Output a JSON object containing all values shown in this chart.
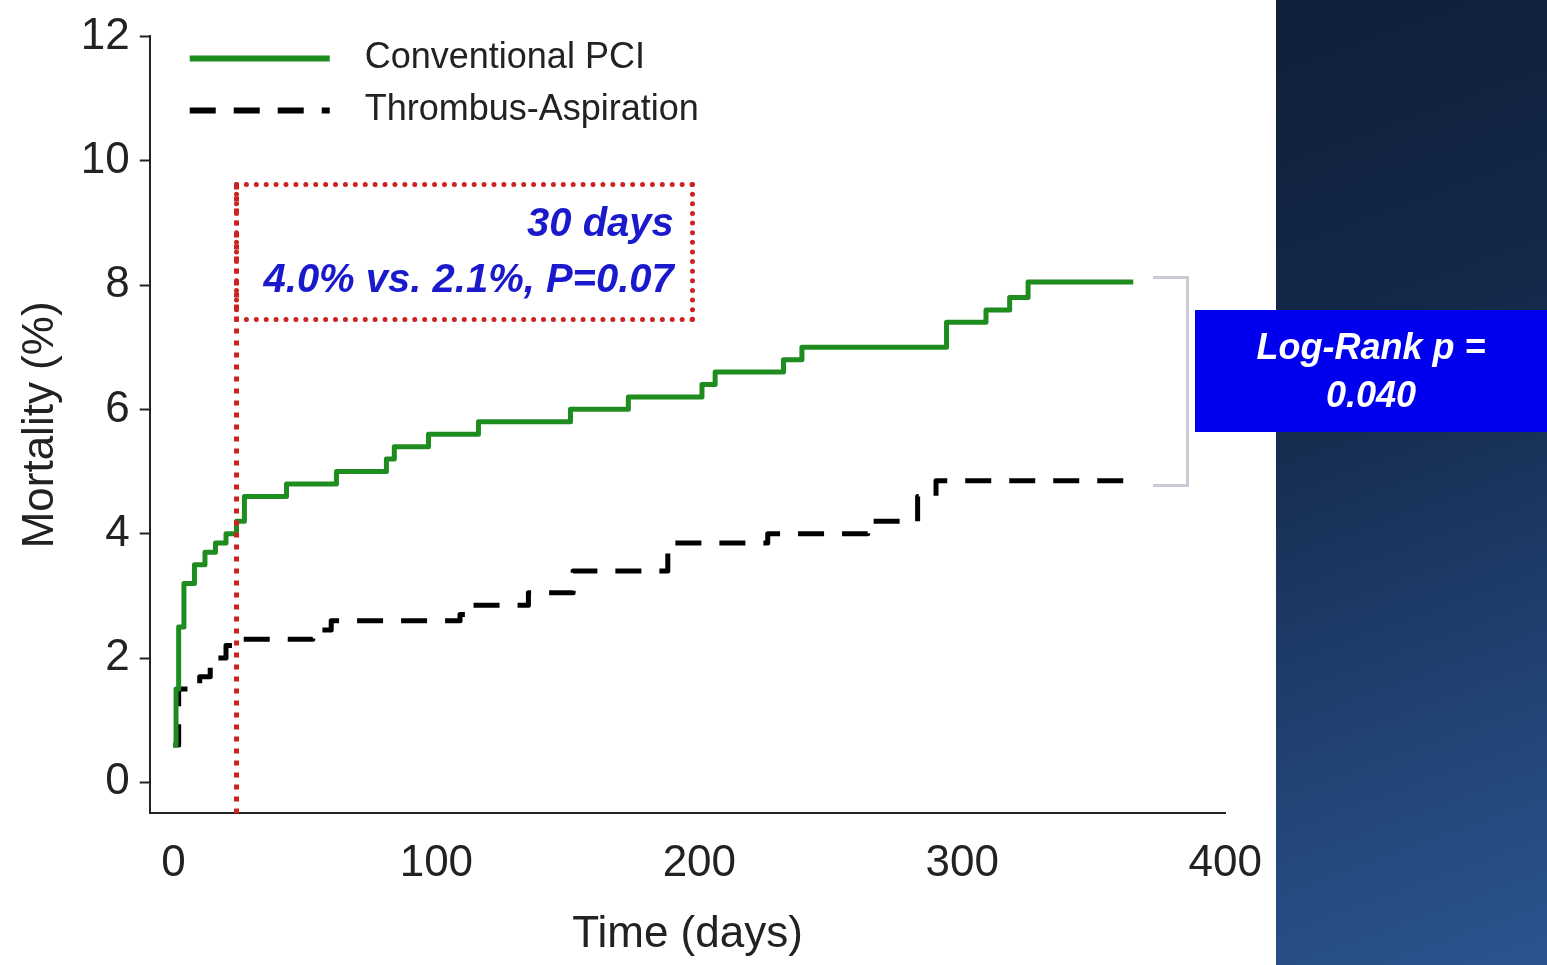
{
  "chart_data": {
    "type": "step",
    "xlabel": "Time (days)",
    "ylabel": "Mortality (%)",
    "xlim": [
      -9,
      400
    ],
    "xticks": [
      0,
      100,
      200,
      300,
      400
    ],
    "ylim": [
      -0.5,
      12
    ],
    "yticks": [
      0,
      2,
      4,
      6,
      8,
      10,
      12
    ],
    "grid": false,
    "legend": "top left",
    "series": [
      {
        "name": "Conventional PCI",
        "color": "#1e8c1e",
        "line_style": "solid",
        "x": [
          0,
          1,
          2,
          4,
          8,
          12,
          16,
          20,
          24,
          27,
          43,
          62,
          81,
          84,
          97,
          116,
          151,
          173,
          201,
          206,
          232,
          239,
          294,
          309,
          318,
          325,
          365
        ],
        "values": [
          0.6,
          1.5,
          2.5,
          3.2,
          3.5,
          3.7,
          3.85,
          4.0,
          4.2,
          4.6,
          4.8,
          5.0,
          5.2,
          5.4,
          5.6,
          5.8,
          6.0,
          6.2,
          6.4,
          6.6,
          6.8,
          7.0,
          7.4,
          7.6,
          7.8,
          8.05,
          8.05
        ]
      },
      {
        "name": "Thrombus-Aspiration",
        "color": "#000000",
        "line_style": "dashed",
        "x": [
          0,
          2,
          10,
          14,
          20,
          24,
          53,
          60,
          109,
          114,
          135,
          152,
          188,
          226,
          264,
          283,
          290,
          363
        ],
        "values": [
          0.6,
          1.5,
          1.7,
          2.0,
          2.2,
          2.3,
          2.45,
          2.6,
          2.7,
          2.85,
          3.05,
          3.4,
          3.85,
          4.0,
          4.2,
          4.6,
          4.85,
          4.85
        ]
      }
    ],
    "ref_lines": [
      {
        "axis": "x",
        "value": 24,
        "color": "#cc2222",
        "line_style": "dotted"
      }
    ],
    "annotations": [
      "30 days",
      "4.0% vs. 2.1%, P=0.07",
      "Log-Rank p = 0.040"
    ]
  }
}
